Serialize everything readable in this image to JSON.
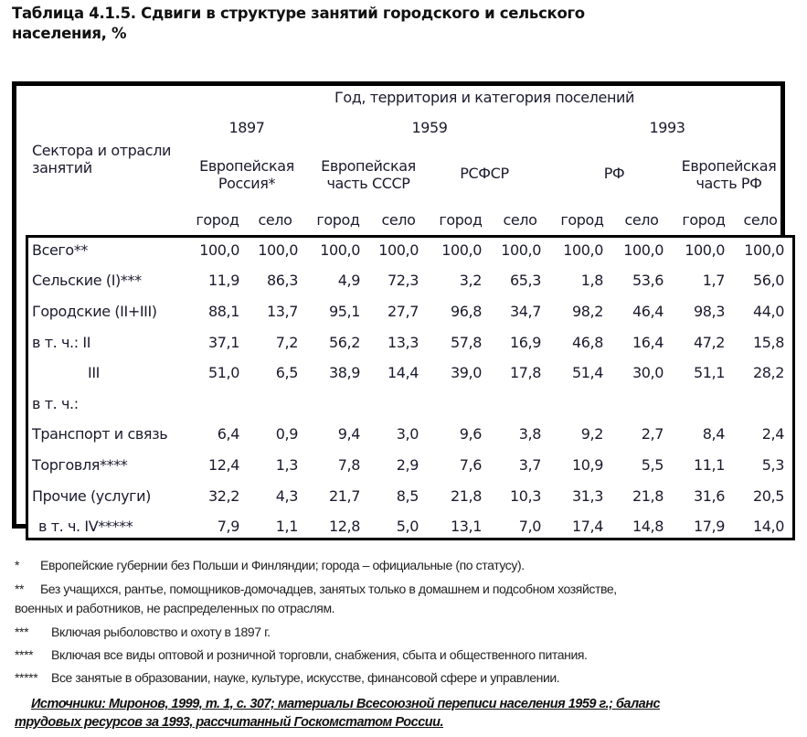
{
  "title": {
    "line1": "Таблица 4.1.5. Сдвиги в структуре занятий городского и сельского",
    "line2": "населения, %"
  },
  "table": {
    "stub_header": {
      "line1": "Сектора и отрасли",
      "line2": "занятий"
    },
    "spanner": "Год, территория и категория поселений",
    "years": [
      {
        "label": "1897"
      },
      {
        "label": "1959"
      },
      {
        "label": "1993"
      }
    ],
    "territories": [
      {
        "line1": "Европейская",
        "line2": "Россия*"
      },
      {
        "line1": "Европейская",
        "line2": "часть СССР"
      },
      {
        "line1": "РСФСР",
        "line2": ""
      },
      {
        "line1": "РФ",
        "line2": ""
      },
      {
        "line1": "Европейская",
        "line2": "часть РФ"
      }
    ],
    "subcolumns": [
      "город",
      "село",
      "город",
      "село",
      "город",
      "село",
      "город",
      "село",
      "город",
      "село"
    ],
    "rows": [
      {
        "label": "Всего**",
        "values": [
          "100,0",
          "100,0",
          "100,0",
          "100,0",
          "100,0",
          "100,0",
          "100,0",
          "100,0",
          "100,0",
          "100,0"
        ]
      },
      {
        "label": "Сельские (I)***",
        "values": [
          "11,9",
          "86,3",
          "4,9",
          "72,3",
          "3,2",
          "65,3",
          "1,8",
          "53,6",
          "1,7",
          "56,0"
        ]
      },
      {
        "label": "Городские (II+III)",
        "values": [
          "88,1",
          "13,7",
          "95,1",
          "27,7",
          "96,8",
          "34,7",
          "98,2",
          "46,4",
          "98,3",
          "44,0"
        ]
      },
      {
        "label": "в т. ч.: II",
        "values": [
          "37,1",
          "7,2",
          "56,2",
          "13,3",
          "57,8",
          "16,9",
          "46,8",
          "16,4",
          "47,2",
          "15,8"
        ]
      },
      {
        "label": "III",
        "values": [
          "51,0",
          "6,5",
          "38,9",
          "14,4",
          "39,0",
          "17,8",
          "51,4",
          "30,0",
          "51,1",
          "28,2"
        ]
      },
      {
        "label": "в т. ч.:",
        "values": [
          "",
          "",
          "",
          "",
          "",
          "",
          "",
          "",
          "",
          ""
        ]
      },
      {
        "label": "Транспорт и связь",
        "values": [
          "6,4",
          "0,9",
          "9,4",
          "3,0",
          "9,6",
          "3,8",
          "9,2",
          "2,7",
          "8,4",
          "2,4"
        ]
      },
      {
        "label": "Торговля****",
        "values": [
          "12,4",
          "1,3",
          "7,8",
          "2,9",
          "7,6",
          "3,7",
          "10,9",
          "5,5",
          "11,1",
          "5,3"
        ]
      },
      {
        "label": "Прочие (услуги)",
        "values": [
          "32,2",
          "4,3",
          "21,7",
          "8,5",
          "21,8",
          "10,3",
          "31,3",
          "21,8",
          "31,6",
          "20,5"
        ]
      },
      {
        "label": "в т. ч. IV*****",
        "values": [
          "7,9",
          "1,1",
          "12,8",
          "5,0",
          "13,1",
          "7,0",
          "17,4",
          "14,8",
          "17,9",
          "14,0"
        ]
      }
    ]
  },
  "footnotes": [
    {
      "mark": "*",
      "text": "Европейские губернии без Польши и Финляндии; города – официальные (по статусу)."
    },
    {
      "mark": "**",
      "text": "Без учащихся, рантье, помощников-домочадцев, занятых только в домашнем и подсобном хозяйстве,",
      "cont": "военных и работников, не распределенных по отраслям."
    },
    {
      "mark": "***",
      "text": "Включая рыболовство и охоту в 1897 г."
    },
    {
      "mark": "****",
      "text": "Включая все виды оптовой и розничной торговли, снабжения, сбыта и общественного питания."
    },
    {
      "mark": "*****",
      "text": "Все занятые в образовании, науке, культуре, искусстве, финансовой сфере и управлении."
    }
  ],
  "source": {
    "line1": "Источники: Миронов, 1999, т. 1, с. 307; материалы Всесоюзной переписи населения 1959 г.; баланс",
    "line2": "трудовых ресурсов за 1993, рассчитанный Госкомстатом России."
  }
}
